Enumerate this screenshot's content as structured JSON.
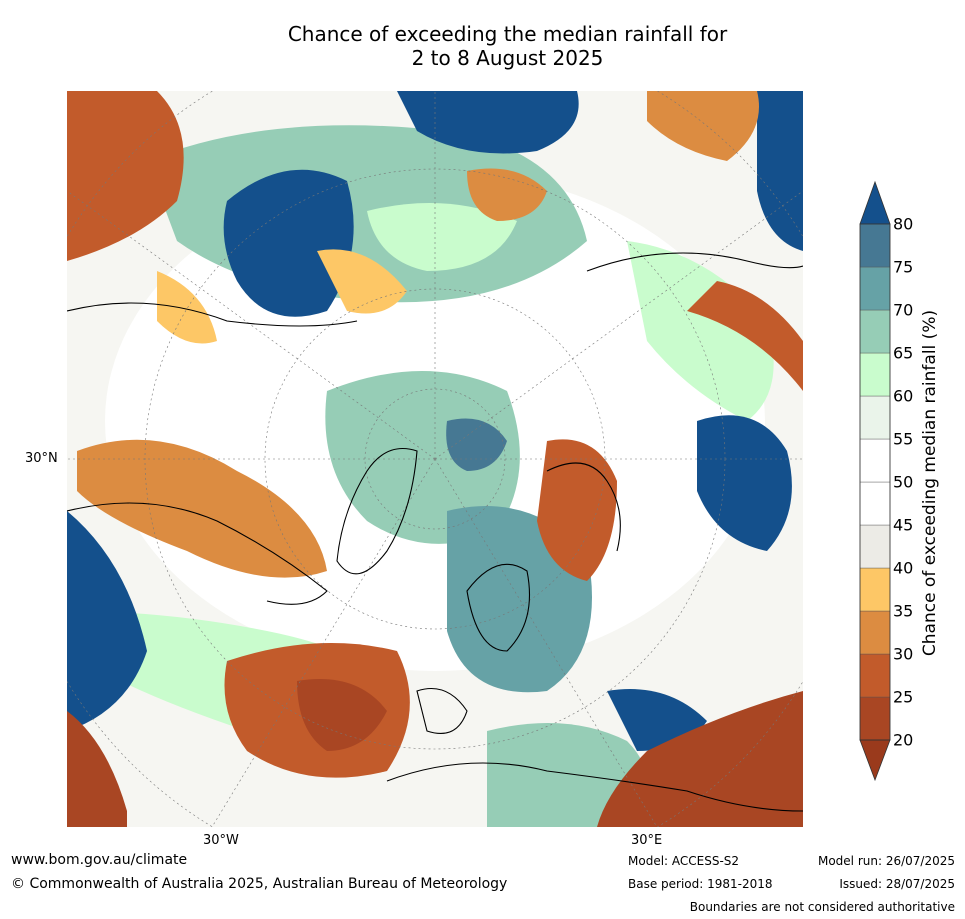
{
  "title": {
    "line1": "Chance of exceeding the median rainfall for",
    "line2": "2 to 8 August 2025"
  },
  "map": {
    "projection": "north polar stereographic",
    "labels": {
      "lat": "30°N",
      "lon_west": "30°W",
      "lon_east": "30°E"
    }
  },
  "colorbar": {
    "label": "Chance of exceeding median rainfall (%)",
    "ticks": [
      "20",
      "25",
      "30",
      "35",
      "40",
      "45",
      "50",
      "55",
      "60",
      "65",
      "70",
      "75",
      "80"
    ],
    "colors": {
      "below_20": "#9a3a1c",
      "20_25": "#a94623",
      "25_30": "#c25b2b",
      "30_35": "#dc8c41",
      "35_40": "#fdc766",
      "40_45": "#ecebe6",
      "45_50": "#ffffff",
      "50_55": "#ffffff",
      "55_60": "#eaf4ea",
      "60_65": "#c9fccd",
      "65_70": "#96cdb6",
      "70_75": "#66a2a6",
      "75_80": "#467893",
      "above_80": "#14508c"
    }
  },
  "footer": {
    "website": "www.bom.gov.au/climate",
    "copyright": "© Commonwealth of Australia 2025, Australian Bureau of Meteorology",
    "model": "Model: ACCESS-S2",
    "base_period": "Base period: 1981-2018",
    "model_run": "Model run: 26/07/2025",
    "issued": "Issued: 28/07/2025",
    "disclaimer": "Boundaries are not considered authoritative"
  }
}
